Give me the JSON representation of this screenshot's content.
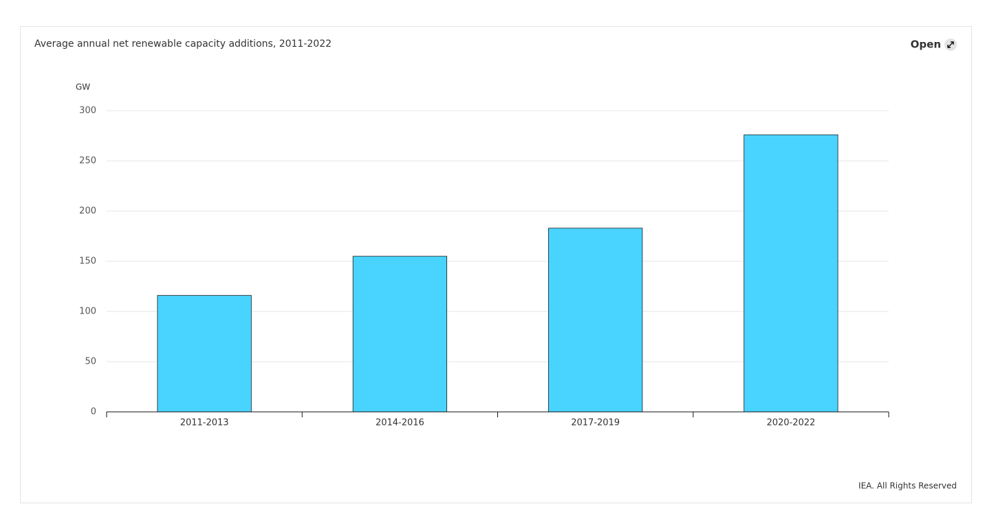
{
  "chart_data": {
    "type": "bar",
    "title": "Average annual net renewable capacity additions, 2011-2022",
    "link": "Open",
    "y_label": "GW",
    "source": "IEA. All Rights Reserved",
    "categories": [
      "2011-2013",
      "2014-2016",
      "2017-2019",
      "2020-2022"
    ],
    "values": [
      116,
      155,
      183,
      276
    ],
    "color": "#48d4ff",
    "ylim": [
      0,
      300
    ],
    "yticks": [
      0,
      50,
      100,
      150,
      200,
      250,
      300
    ],
    "grid": true
  }
}
